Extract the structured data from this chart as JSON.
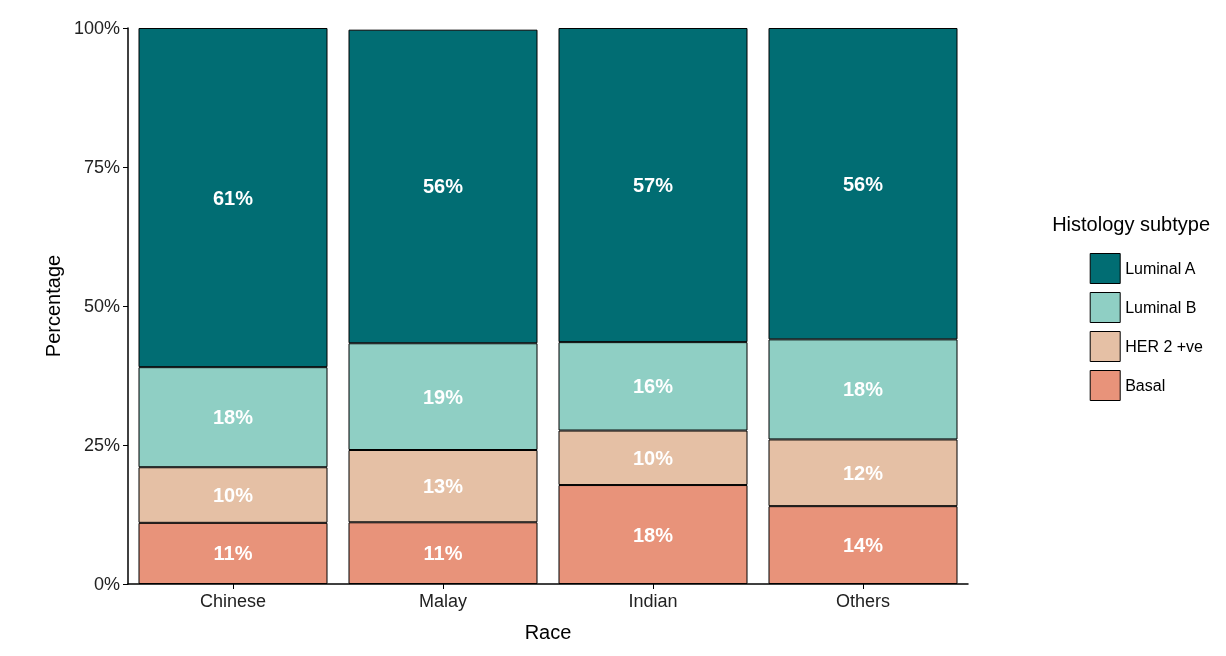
{
  "chart_data": {
    "type": "bar",
    "stacked": true,
    "xlabel": "Race",
    "ylabel": "Percentage",
    "legend_title": "Histology subtype",
    "legend": "right",
    "grid": false,
    "categories": [
      "Chinese",
      "Malay",
      "Indian",
      "Others"
    ],
    "ylim": [
      0,
      100
    ],
    "yticks": [
      {
        "value": 0,
        "label": "0%"
      },
      {
        "value": 25,
        "label": "25%"
      },
      {
        "value": 50,
        "label": "50%"
      },
      {
        "value": 75,
        "label": "75%"
      },
      {
        "value": 100,
        "label": "100%"
      }
    ],
    "series": [
      {
        "name": "Basal",
        "color": "#e8937a",
        "values": [
          11.0,
          11.1,
          17.8,
          14.0
        ],
        "value_labels": [
          "11%",
          "11%",
          "18%",
          "14%"
        ]
      },
      {
        "name": "HER 2 +ve",
        "color": "#e5c0a5",
        "values": [
          10.0,
          13.0,
          9.8,
          12.0
        ],
        "value_labels": [
          "10%",
          "13%",
          "10%",
          "12%"
        ]
      },
      {
        "name": "Luminal B",
        "color": "#8fcfc4",
        "values": [
          18.0,
          19.2,
          15.9,
          18.0
        ],
        "value_labels": [
          "18%",
          "19%",
          "16%",
          "18%"
        ]
      },
      {
        "name": "Luminal A",
        "color": "#016d73",
        "values": [
          61.0,
          56.4,
          56.5,
          56.0
        ],
        "value_labels": [
          "61%",
          "56%",
          "57%",
          "56%"
        ]
      }
    ]
  }
}
